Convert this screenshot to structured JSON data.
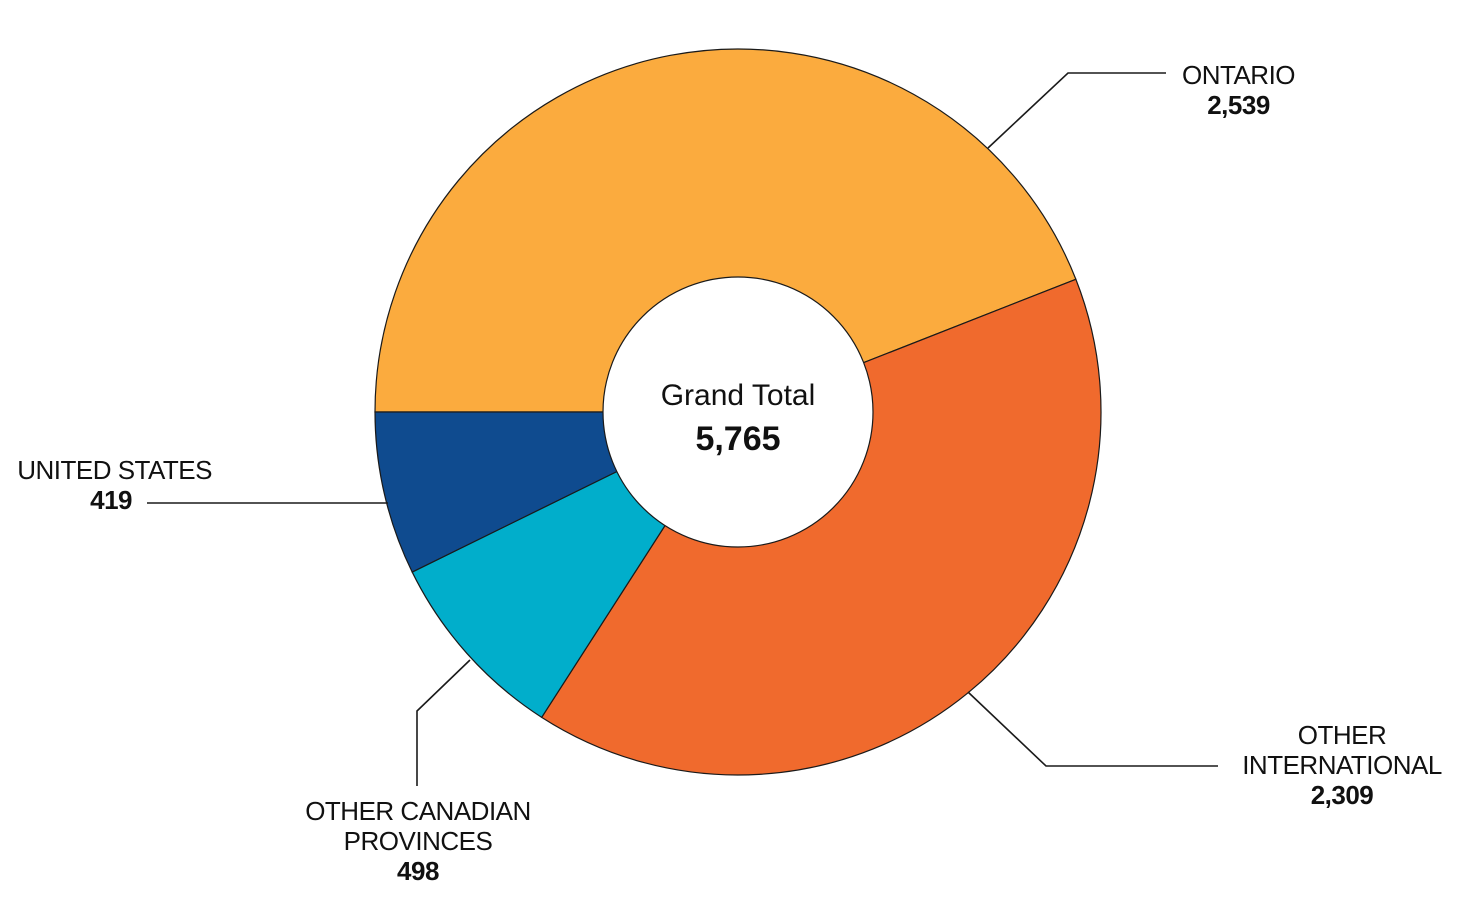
{
  "chart_data": {
    "type": "pie",
    "donut": true,
    "start": "9 o'clock, clockwise",
    "center": {
      "title": "Grand Total",
      "total": "5,765"
    },
    "slices": [
      {
        "label": "ONTARIO",
        "value": 2539,
        "value_label": "2,539",
        "color": "#fbab3e"
      },
      {
        "label": "OTHER INTERNATIONAL",
        "value": 2309,
        "value_label": "2,309",
        "color": "#f06a2d"
      },
      {
        "label": "OTHER CANADIAN PROVINCES",
        "value": 498,
        "value_label": "498",
        "color": "#01aecb"
      },
      {
        "label": "UNITED STATES",
        "value": 419,
        "value_label": "419",
        "color": "#0f4b8f"
      }
    ]
  }
}
